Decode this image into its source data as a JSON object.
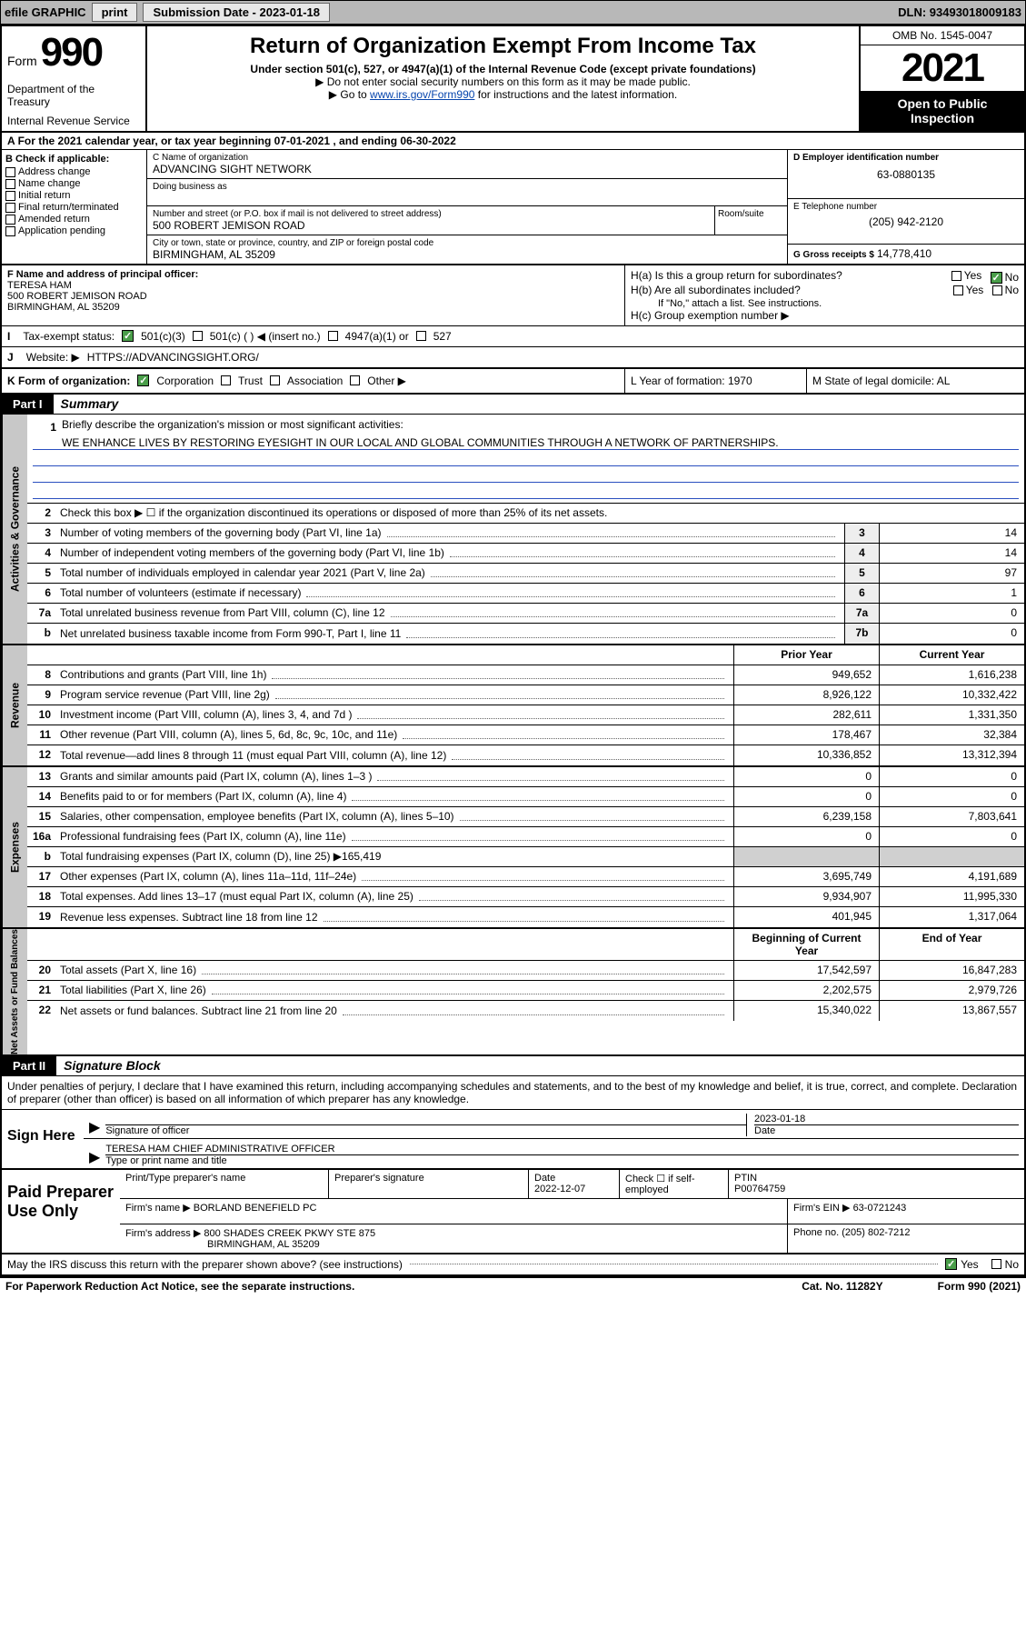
{
  "topbar": {
    "efile": "efile GRAPHIC",
    "print": "print",
    "submission": "Submission Date - 2023-01-18",
    "dln": "DLN: 93493018009183"
  },
  "header": {
    "form_word": "Form",
    "form_num": "990",
    "dept": "Department of the Treasury",
    "irs": "Internal Revenue Service",
    "title": "Return of Organization Exempt From Income Tax",
    "subtitle": "Under section 501(c), 527, or 4947(a)(1) of the Internal Revenue Code (except private foundations)",
    "instr1": "▶ Do not enter social security numbers on this form as it may be made public.",
    "instr2_pre": "▶ Go to ",
    "instr2_link": "www.irs.gov/Form990",
    "instr2_post": " for instructions and the latest information.",
    "omb": "OMB No. 1545-0047",
    "year": "2021",
    "open": "Open to Public Inspection"
  },
  "row_a": "For the 2021 calendar year, or tax year beginning 07-01-2021   , and ending 06-30-2022",
  "section_b": {
    "header": "B Check if applicable:",
    "items": [
      "Address change",
      "Name change",
      "Initial return",
      "Final return/terminated",
      "Amended return",
      "Application pending"
    ]
  },
  "section_c": {
    "name_label": "C Name of organization",
    "name": "ADVANCING SIGHT NETWORK",
    "dba_label": "Doing business as",
    "addr_label": "Number and street (or P.O. box if mail is not delivered to street address)",
    "addr": "500 ROBERT JEMISON ROAD",
    "room_label": "Room/suite",
    "city_label": "City or town, state or province, country, and ZIP or foreign postal code",
    "city": "BIRMINGHAM, AL  35209"
  },
  "section_d": {
    "ein_label": "D Employer identification number",
    "ein": "63-0880135",
    "tel_label": "E Telephone number",
    "tel": "(205) 942-2120",
    "gross_label": "G Gross receipts $",
    "gross": "14,778,410"
  },
  "officer": {
    "label": "F  Name and address of principal officer:",
    "name": "TERESA HAM",
    "addr1": "500 ROBERT JEMISON ROAD",
    "addr2": "BIRMINGHAM, AL  35209"
  },
  "h": {
    "ha": "H(a)  Is this a group return for subordinates?",
    "hb": "H(b)  Are all subordinates included?",
    "hb_note": "If \"No,\" attach a list. See instructions.",
    "hc": "H(c)  Group exemption number ▶",
    "yes": "Yes",
    "no": "No"
  },
  "row_i": {
    "label": "Tax-exempt status:",
    "opts": [
      "501(c)(3)",
      "501(c) (  ) ◀ (insert no.)",
      "4947(a)(1) or",
      "527"
    ]
  },
  "row_j": {
    "label": "Website: ▶",
    "val": "HTTPS://ADVANCINGSIGHT.ORG/"
  },
  "row_k": {
    "label": "K Form of organization:",
    "opts": [
      "Corporation",
      "Trust",
      "Association",
      "Other ▶"
    ],
    "l": "L Year of formation: 1970",
    "m": "M State of legal domicile: AL"
  },
  "part1": {
    "header": "Part I",
    "title": "Summary",
    "q1": "Briefly describe the organization's mission or most significant activities:",
    "mission": "WE ENHANCE LIVES BY RESTORING EYESIGHT IN OUR LOCAL AND GLOBAL COMMUNITIES THROUGH A NETWORK OF PARTNERSHIPS.",
    "q2": "Check this box ▶ ☐  if the organization discontinued its operations or disposed of more than 25% of its net assets."
  },
  "tabs": {
    "gov": "Activities & Governance",
    "rev": "Revenue",
    "exp": "Expenses",
    "net": "Net Assets or Fund Balances"
  },
  "gov_lines": [
    {
      "n": "3",
      "d": "Number of voting members of the governing body (Part VI, line 1a)",
      "box": "3",
      "v": "14"
    },
    {
      "n": "4",
      "d": "Number of independent voting members of the governing body (Part VI, line 1b)",
      "box": "4",
      "v": "14"
    },
    {
      "n": "5",
      "d": "Total number of individuals employed in calendar year 2021 (Part V, line 2a)",
      "box": "5",
      "v": "97"
    },
    {
      "n": "6",
      "d": "Total number of volunteers (estimate if necessary)",
      "box": "6",
      "v": "1"
    },
    {
      "n": "7a",
      "d": "Total unrelated business revenue from Part VIII, column (C), line 12",
      "box": "7a",
      "v": "0"
    },
    {
      "n": "b",
      "d": "Net unrelated business taxable income from Form 990-T, Part I, line 11",
      "box": "7b",
      "v": "0"
    }
  ],
  "col_headers": {
    "prior": "Prior Year",
    "current": "Current Year",
    "beg": "Beginning of Current Year",
    "end": "End of Year"
  },
  "rev_lines": [
    {
      "n": "8",
      "d": "Contributions and grants (Part VIII, line 1h)",
      "p": "949,652",
      "c": "1,616,238"
    },
    {
      "n": "9",
      "d": "Program service revenue (Part VIII, line 2g)",
      "p": "8,926,122",
      "c": "10,332,422"
    },
    {
      "n": "10",
      "d": "Investment income (Part VIII, column (A), lines 3, 4, and 7d )",
      "p": "282,611",
      "c": "1,331,350"
    },
    {
      "n": "11",
      "d": "Other revenue (Part VIII, column (A), lines 5, 6d, 8c, 9c, 10c, and 11e)",
      "p": "178,467",
      "c": "32,384"
    },
    {
      "n": "12",
      "d": "Total revenue—add lines 8 through 11 (must equal Part VIII, column (A), line 12)",
      "p": "10,336,852",
      "c": "13,312,394"
    }
  ],
  "exp_lines": [
    {
      "n": "13",
      "d": "Grants and similar amounts paid (Part IX, column (A), lines 1–3 )",
      "p": "0",
      "c": "0"
    },
    {
      "n": "14",
      "d": "Benefits paid to or for members (Part IX, column (A), line 4)",
      "p": "0",
      "c": "0"
    },
    {
      "n": "15",
      "d": "Salaries, other compensation, employee benefits (Part IX, column (A), lines 5–10)",
      "p": "6,239,158",
      "c": "7,803,641"
    },
    {
      "n": "16a",
      "d": "Professional fundraising fees (Part IX, column (A), line 11e)",
      "p": "0",
      "c": "0"
    },
    {
      "n": "b",
      "d": "Total fundraising expenses (Part IX, column (D), line 25) ▶165,419",
      "shaded": true
    },
    {
      "n": "17",
      "d": "Other expenses (Part IX, column (A), lines 11a–11d, 11f–24e)",
      "p": "3,695,749",
      "c": "4,191,689"
    },
    {
      "n": "18",
      "d": "Total expenses. Add lines 13–17 (must equal Part IX, column (A), line 25)",
      "p": "9,934,907",
      "c": "11,995,330"
    },
    {
      "n": "19",
      "d": "Revenue less expenses. Subtract line 18 from line 12",
      "p": "401,945",
      "c": "1,317,064"
    }
  ],
  "net_lines": [
    {
      "n": "20",
      "d": "Total assets (Part X, line 16)",
      "p": "17,542,597",
      "c": "16,847,283"
    },
    {
      "n": "21",
      "d": "Total liabilities (Part X, line 26)",
      "p": "2,202,575",
      "c": "2,979,726"
    },
    {
      "n": "22",
      "d": "Net assets or fund balances. Subtract line 21 from line 20",
      "p": "15,340,022",
      "c": "13,867,557"
    }
  ],
  "part2": {
    "header": "Part II",
    "title": "Signature Block",
    "decl": "Under penalties of perjury, I declare that I have examined this return, including accompanying schedules and statements, and to the best of my knowledge and belief, it is true, correct, and complete. Declaration of preparer (other than officer) is based on all information of which preparer has any knowledge."
  },
  "sign": {
    "here": "Sign Here",
    "sig_label": "Signature of officer",
    "date_label": "Date",
    "date": "2023-01-18",
    "typed": "TERESA HAM CHIEF ADMINISTRATIVE OFFICER",
    "typed_label": "Type or print name and title"
  },
  "prep": {
    "title": "Paid Preparer Use Only",
    "h1": "Print/Type preparer's name",
    "h2": "Preparer's signature",
    "h3": "Date",
    "date": "2022-12-07",
    "h4": "Check ☐ if self-employed",
    "h5": "PTIN",
    "ptin": "P00764759",
    "firm_label": "Firm's name    ▶",
    "firm": "BORLAND BENEFIELD PC",
    "ein_label": "Firm's EIN ▶",
    "ein": "63-0721243",
    "addr_label": "Firm's address ▶",
    "addr1": "800 SHADES CREEK PKWY STE 875",
    "addr2": "BIRMINGHAM, AL  35209",
    "phone_label": "Phone no.",
    "phone": "(205) 802-7212"
  },
  "footer": {
    "discuss": "May the IRS discuss this return with the preparer shown above? (see instructions)",
    "yes": "Yes",
    "no": "No",
    "paperwork": "For Paperwork Reduction Act Notice, see the separate instructions.",
    "cat": "Cat. No. 11282Y",
    "form": "Form 990 (2021)"
  }
}
